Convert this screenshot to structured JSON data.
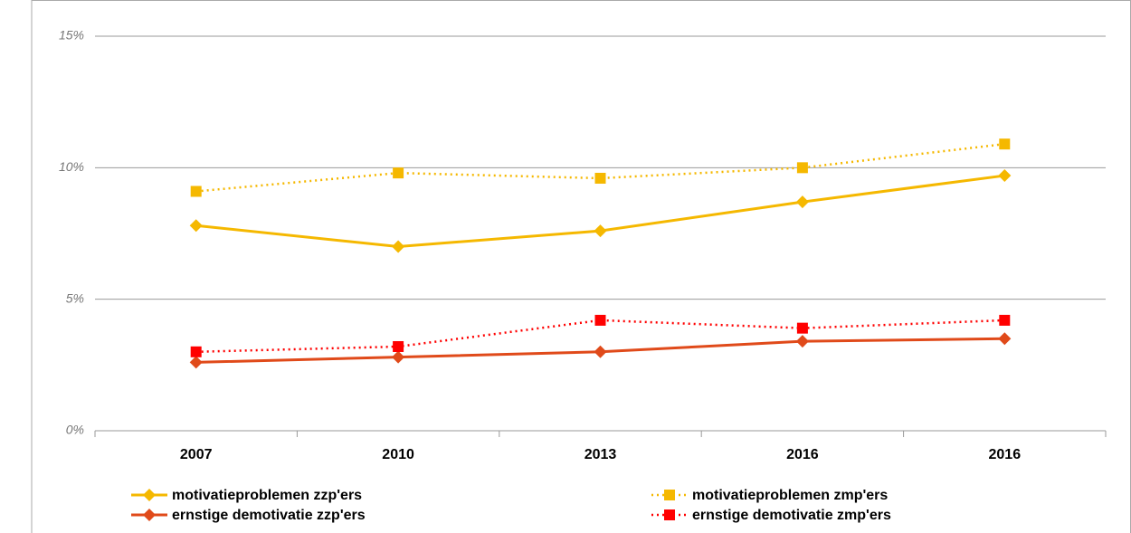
{
  "chart_data": {
    "type": "line",
    "categories": [
      "2007",
      "2010",
      "2013",
      "2016",
      "2016"
    ],
    "series": [
      {
        "name": "motivatieproblemen zzp'ers",
        "color": "#f5b800",
        "dash": false,
        "marker": "diamond",
        "values": [
          7.8,
          7.0,
          7.6,
          8.7,
          9.7
        ]
      },
      {
        "name": "motivatieproblemen zmp'ers",
        "color": "#f5b800",
        "dash": true,
        "marker": "square",
        "values": [
          9.1,
          9.8,
          9.6,
          10.0,
          10.9
        ]
      },
      {
        "name": "ernstige demotivatie zzp'ers",
        "color": "#e04a1a",
        "dash": false,
        "marker": "diamond",
        "values": [
          2.6,
          2.8,
          3.0,
          3.4,
          3.5
        ]
      },
      {
        "name": "ernstige demotivatie zmp'ers",
        "color": "#ff0000",
        "dash": true,
        "marker": "square",
        "values": [
          3.0,
          3.2,
          4.2,
          3.9,
          4.2
        ]
      }
    ],
    "ylim": [
      0,
      15
    ],
    "yticks": [
      {
        "value": 0,
        "label": "0%"
      },
      {
        "value": 5,
        "label": "5%"
      },
      {
        "value": 10,
        "label": "10%"
      },
      {
        "value": 15,
        "label": "15%"
      }
    ],
    "grid": true
  }
}
